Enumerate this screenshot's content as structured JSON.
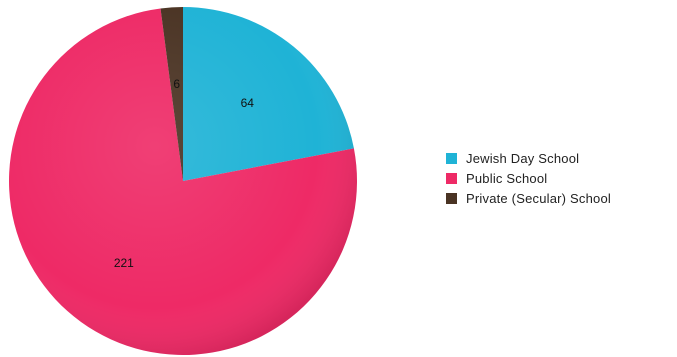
{
  "chart_data": {
    "type": "pie",
    "slices": [
      {
        "label": "Jewish Day School",
        "value": 64,
        "color": "#1fb3d6"
      },
      {
        "label": "Public School",
        "value": 221,
        "color": "#ee2a66"
      },
      {
        "label": "Private (Secular) School",
        "value": 6,
        "color": "#4a3323"
      }
    ],
    "start_angle_deg": 0,
    "direction": "clockwise",
    "data_labels": true,
    "legend_position": "right"
  }
}
